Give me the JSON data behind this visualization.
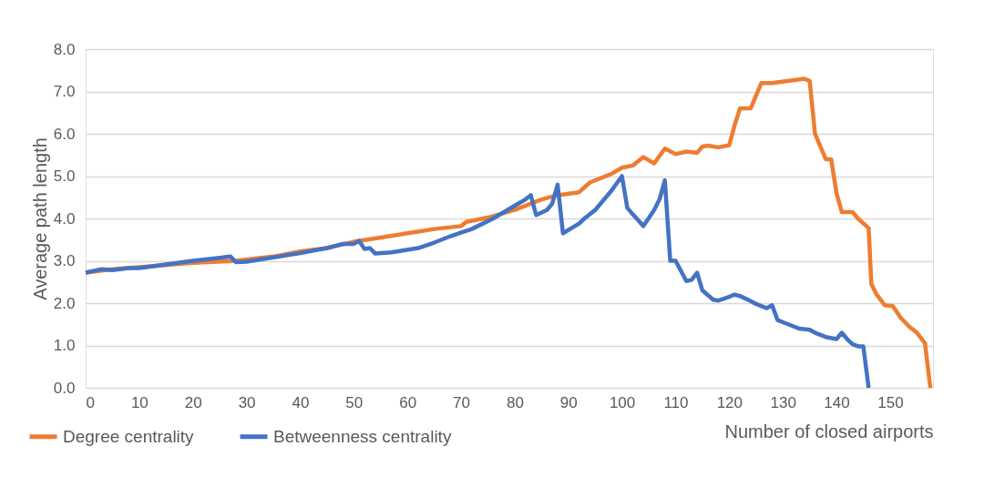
{
  "chart_data": {
    "type": "line",
    "xlabel": "Number of closed airports",
    "ylabel": "Average path length",
    "xlim": [
      0,
      158
    ],
    "xticks": [
      0,
      10,
      20,
      30,
      40,
      50,
      60,
      70,
      80,
      90,
      100,
      110,
      120,
      130,
      140,
      150
    ],
    "ylim": [
      0,
      8
    ],
    "yticks": [
      {
        "value": 0,
        "label": "0.0"
      },
      {
        "value": 1,
        "label": "1.0"
      },
      {
        "value": 2,
        "label": "2.0"
      },
      {
        "value": 3,
        "label": "3.0"
      },
      {
        "value": 4,
        "label": "4.0"
      },
      {
        "value": 5,
        "label": "5.0"
      },
      {
        "value": 6,
        "label": "6.0"
      },
      {
        "value": 7,
        "label": "7.0"
      },
      {
        "value": 8,
        "label": "8.0"
      }
    ],
    "grid": "y",
    "legend": "bottom left",
    "marker": "none",
    "line_style": "solid",
    "series": [
      {
        "name": "Degree centrality",
        "color": "#ed7d31",
        "x": [
          0,
          5,
          10,
          20,
          28,
          35,
          40,
          45,
          50,
          55,
          60,
          65,
          70,
          71,
          75,
          80,
          85,
          88,
          92,
          94,
          98,
          100,
          102,
          104,
          106,
          108,
          110,
          112,
          114,
          115,
          116,
          118,
          120,
          121,
          122,
          124,
          126,
          128,
          134,
          135,
          136,
          138,
          139,
          140,
          141,
          143,
          144,
          146,
          146.5,
          147.5,
          149,
          150.5,
          152,
          153.5,
          155,
          156.5,
          157.5
        ],
        "values": [
          2.72,
          2.8,
          2.85,
          2.95,
          3.0,
          3.1,
          3.22,
          3.3,
          3.45,
          3.55,
          3.65,
          3.75,
          3.82,
          3.92,
          4.02,
          4.2,
          4.45,
          4.55,
          4.62,
          4.85,
          5.05,
          5.2,
          5.25,
          5.45,
          5.3,
          5.65,
          5.52,
          5.58,
          5.55,
          5.7,
          5.72,
          5.68,
          5.73,
          6.2,
          6.6,
          6.6,
          7.2,
          7.2,
          7.3,
          7.25,
          6.0,
          5.4,
          5.4,
          4.6,
          4.15,
          4.15,
          4.0,
          3.77,
          2.45,
          2.2,
          1.95,
          1.93,
          1.65,
          1.45,
          1.3,
          1.05,
          0.0
        ]
      },
      {
        "name": "Betweenness centrality",
        "color": "#4472c4",
        "x": [
          0,
          3,
          5,
          8,
          10,
          20,
          25,
          27,
          28,
          30,
          40,
          45,
          48,
          50,
          51,
          52,
          53,
          54,
          57,
          62,
          65,
          68,
          72,
          76,
          80,
          82,
          83,
          84,
          86,
          87,
          88,
          89,
          92,
          93,
          95,
          98,
          100,
          101,
          102,
          104,
          106,
          107,
          108,
          109,
          110,
          112,
          113,
          114,
          115,
          117,
          118,
          120,
          121,
          122,
          124,
          125,
          127,
          128,
          129,
          131,
          133,
          135,
          136,
          138,
          140,
          141,
          142,
          143,
          144,
          145,
          146
        ],
        "values": [
          2.72,
          2.8,
          2.78,
          2.83,
          2.83,
          3.0,
          3.07,
          3.1,
          2.97,
          2.98,
          3.18,
          3.3,
          3.4,
          3.4,
          3.47,
          3.28,
          3.3,
          3.17,
          3.2,
          3.3,
          3.43,
          3.58,
          3.75,
          4.0,
          4.3,
          4.45,
          4.55,
          4.08,
          4.2,
          4.35,
          4.8,
          3.65,
          3.88,
          4.0,
          4.2,
          4.65,
          5.0,
          4.25,
          4.1,
          3.82,
          4.2,
          4.45,
          4.9,
          3.0,
          3.0,
          2.52,
          2.55,
          2.72,
          2.3,
          2.08,
          2.06,
          2.15,
          2.2,
          2.17,
          2.05,
          1.98,
          1.88,
          1.95,
          1.6,
          1.5,
          1.4,
          1.37,
          1.3,
          1.2,
          1.15,
          1.3,
          1.15,
          1.03,
          0.98,
          0.98,
          0.0
        ]
      }
    ]
  }
}
